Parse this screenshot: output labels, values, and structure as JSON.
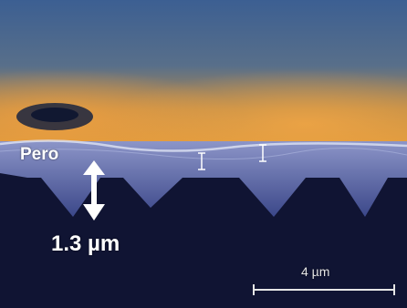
{
  "image": {
    "labels": {
      "layer_label": "Pero",
      "thickness_label": "1.3 µm",
      "scale_bar_label": "4 µm"
    },
    "colors": {
      "top_blue": "#40608f",
      "orange_glow": "#d6902f",
      "substrate_dark": "#101433",
      "film_blue": "#5c6fb6",
      "marker_white": "#ffffff"
    }
  }
}
